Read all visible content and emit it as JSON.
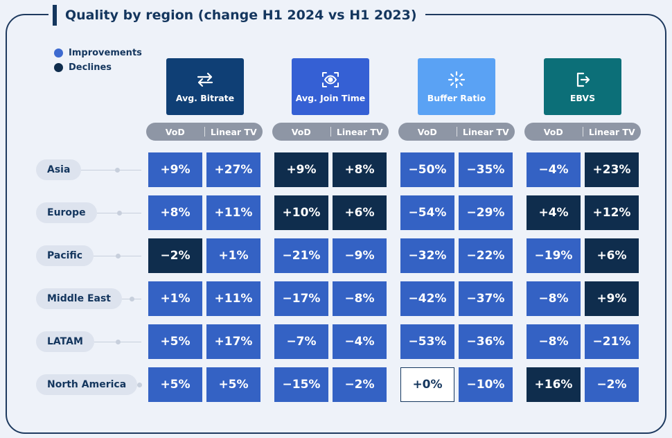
{
  "title": "Quality by region (change H1 2024  vs H1 2023)",
  "legend": [
    {
      "label": "Improvements",
      "color": "#3d6ad0"
    },
    {
      "label": "Declines",
      "color": "#0f2d4d"
    }
  ],
  "metrics": [
    {
      "label": "Avg. Bitrate",
      "icon": "swap-arrows-icon",
      "color": "#0f3f75"
    },
    {
      "label": "Avg. Join Time",
      "icon": "eye-scan-icon",
      "color": "#3560d4"
    },
    {
      "label": "Buffer Ratio",
      "icon": "loading-play-icon",
      "color": "#5aa2f4"
    },
    {
      "label": "EBVS",
      "icon": "exit-icon",
      "color": "#0c6f78"
    }
  ],
  "sub_columns": [
    "VoD",
    "Linear TV"
  ],
  "chart_data": {
    "type": "table",
    "title": "Quality by region (change H1 2024  vs H1 2023)",
    "columns": [
      "Avg. Bitrate VoD",
      "Avg. Bitrate Linear TV",
      "Avg. Join Time VoD",
      "Avg. Join Time Linear TV",
      "Buffer Ratio VoD",
      "Buffer Ratio Linear TV",
      "EBVS VoD",
      "EBVS Linear TV"
    ],
    "rows": [
      {
        "region": "Asia",
        "values": [
          "+9%",
          "+27%",
          "+9%",
          "+8%",
          "-50%",
          "-35%",
          "-4%",
          "+23%"
        ],
        "status": [
          "improve",
          "improve",
          "decline",
          "decline",
          "improve",
          "improve",
          "improve",
          "decline"
        ]
      },
      {
        "region": "Europe",
        "values": [
          "+8%",
          "+11%",
          "+10%",
          "+6%",
          "-54%",
          "-29%",
          "+4%",
          "+12%"
        ],
        "status": [
          "improve",
          "improve",
          "decline",
          "decline",
          "improve",
          "improve",
          "decline",
          "decline"
        ]
      },
      {
        "region": "Pacific",
        "values": [
          "-2%",
          "+1%",
          "-21%",
          "-9%",
          "-32%",
          "-22%",
          "-19%",
          "+6%"
        ],
        "status": [
          "decline",
          "improve",
          "improve",
          "improve",
          "improve",
          "improve",
          "improve",
          "decline"
        ]
      },
      {
        "region": "Middle East",
        "values": [
          "+1%",
          "+11%",
          "-17%",
          "-8%",
          "-42%",
          "-37%",
          "-8%",
          "+9%"
        ],
        "status": [
          "improve",
          "improve",
          "improve",
          "improve",
          "improve",
          "improve",
          "improve",
          "decline"
        ]
      },
      {
        "region": "LATAM",
        "values": [
          "+5%",
          "+17%",
          "-7%",
          "-4%",
          "-53%",
          "-36%",
          "-8%",
          "-21%"
        ],
        "status": [
          "improve",
          "improve",
          "improve",
          "improve",
          "improve",
          "improve",
          "improve",
          "improve"
        ]
      },
      {
        "region": "North America",
        "values": [
          "+5%",
          "+5%",
          "-15%",
          "-2%",
          "+0%",
          "-10%",
          "+16%",
          "-2%"
        ],
        "status": [
          "improve",
          "improve",
          "improve",
          "improve",
          "neutral",
          "improve",
          "decline",
          "improve"
        ]
      }
    ]
  }
}
